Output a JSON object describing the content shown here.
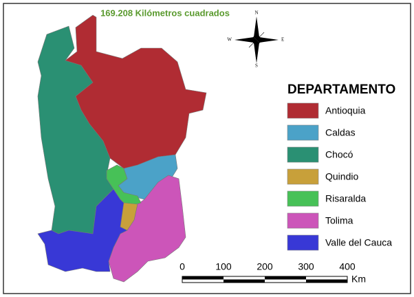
{
  "title": "169.208 Kilómetros cuadrados",
  "compass": {
    "north": "N",
    "south": "S",
    "east": "E",
    "west": "W"
  },
  "legend": {
    "title": "DEPARTAMENTO",
    "items": [
      {
        "label": "Antioquia",
        "color": "#b02c33"
      },
      {
        "label": "Caldas",
        "color": "#4ba2c8"
      },
      {
        "label": "Chocó",
        "color": "#2a9073"
      },
      {
        "label": "Quindio",
        "color": "#c8a03a"
      },
      {
        "label": "Risaralda",
        "color": "#47c157"
      },
      {
        "label": "Tolima",
        "color": "#cc55b9"
      },
      {
        "label": "Valle del Cauca",
        "color": "#3838d6"
      }
    ]
  },
  "scale": {
    "ticks": [
      0,
      100,
      200,
      300,
      400
    ],
    "unit": "Km"
  }
}
